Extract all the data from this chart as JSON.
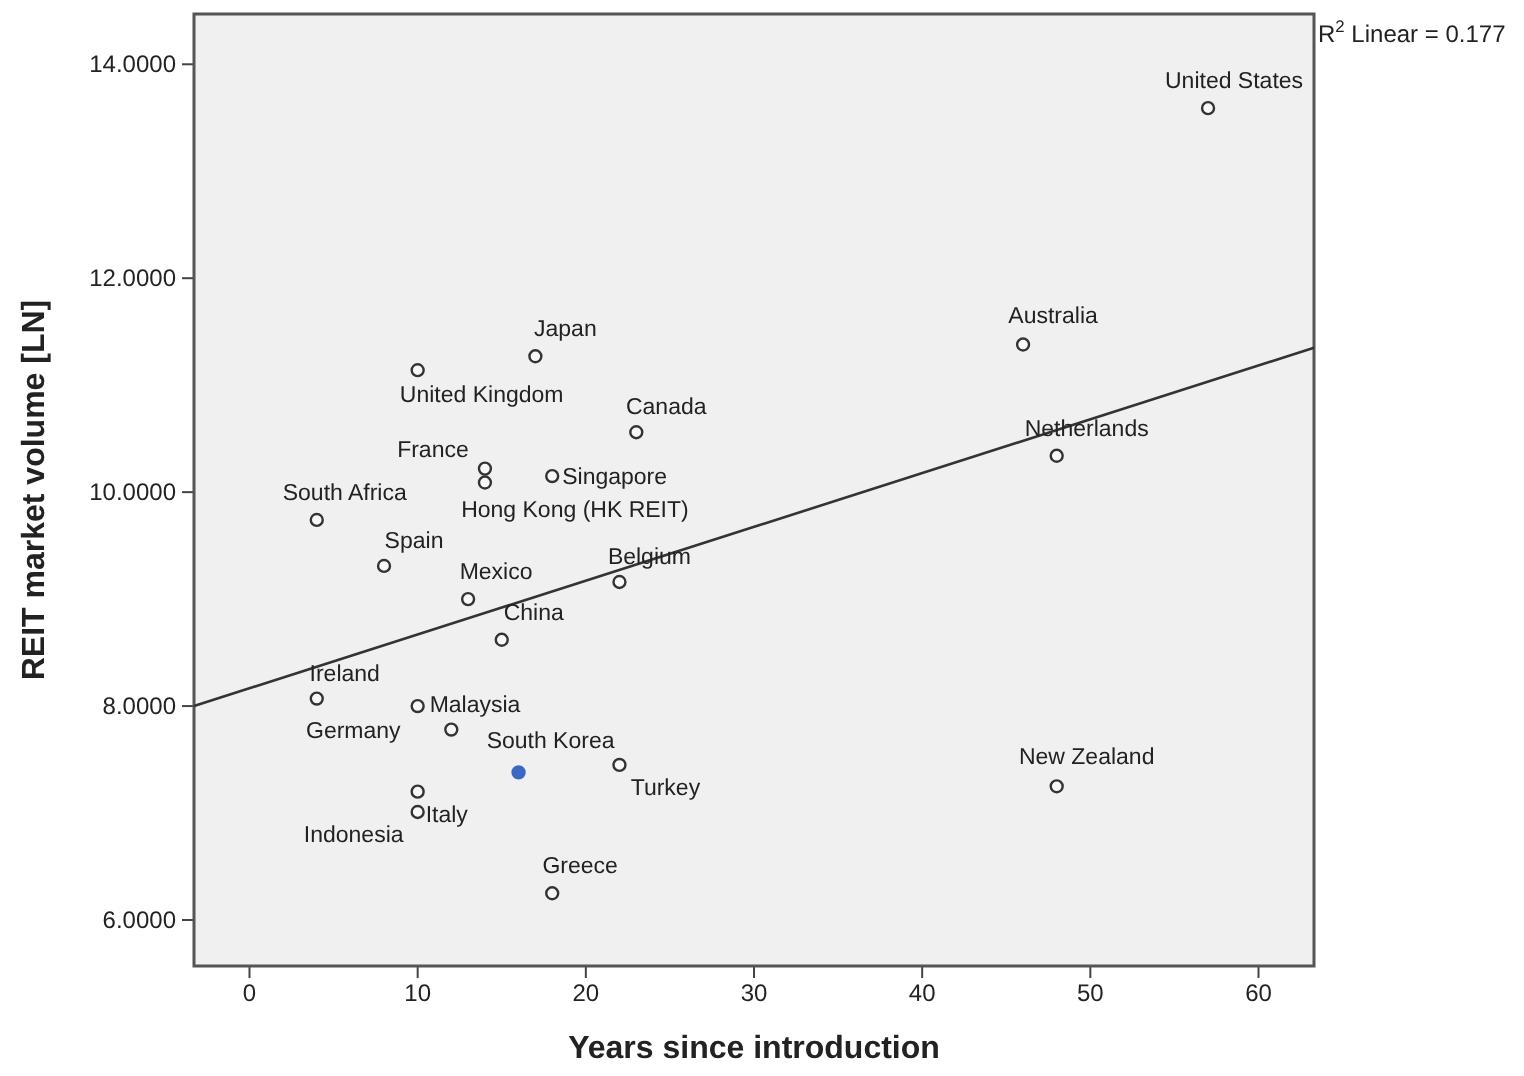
{
  "chart_data": {
    "type": "scatter",
    "xlabel": "Years since introduction",
    "ylabel": "REIT market volume [LN]",
    "xlim": [
      -3.3,
      63.3
    ],
    "ylim": [
      5.57,
      14.47
    ],
    "xticks": [
      0,
      10,
      20,
      30,
      40,
      50,
      60
    ],
    "yticks": [
      {
        "value": 6,
        "label": "6.0000"
      },
      {
        "value": 8,
        "label": "8.0000"
      },
      {
        "value": 10,
        "label": "10.0000"
      },
      {
        "value": 12,
        "label": "12.0000"
      },
      {
        "value": 14,
        "label": "14.0000"
      }
    ],
    "grid": false,
    "series": [
      {
        "marker": "circle",
        "color": "#333333",
        "x": [
          57,
          46,
          48,
          48,
          17,
          10,
          23,
          14,
          14,
          18,
          4,
          8,
          13,
          22,
          15,
          4,
          10,
          12,
          16,
          22,
          10,
          10,
          18
        ],
        "values": [
          13.59,
          11.38,
          10.34,
          7.25,
          11.27,
          11.14,
          10.56,
          10.22,
          10.09,
          10.15,
          9.74,
          9.31,
          9.0,
          9.16,
          8.62,
          8.07,
          8.0,
          7.78,
          7.38,
          7.45,
          7.2,
          7.01,
          6.25
        ],
        "colors": [
          "#333333",
          "#333333",
          "#333333",
          "#333333",
          "#333333",
          "#333333",
          "#333333",
          "#333333",
          "#333333",
          "#333333",
          "#333333",
          "#333333",
          "#333333",
          "#333333",
          "#333333",
          "#333333",
          "#333333",
          "#333333",
          "#3a68c4",
          "#333333",
          "#333333",
          "#333333",
          "#333333"
        ]
      },
      {
        "type": "line",
        "marker": "none",
        "color": "#333333",
        "line_style": "solid",
        "x": [
          -3.3,
          63.3
        ],
        "values": [
          8.0,
          11.35
        ]
      }
    ],
    "annotations": [
      {
        "text": "United States",
        "x": 57,
        "y": 13.59
      },
      {
        "text": "Australia",
        "x": 46,
        "y": 11.38
      },
      {
        "text": "Netherlands",
        "x": 48,
        "y": 10.34
      },
      {
        "text": "New Zealand",
        "x": 48,
        "y": 7.25
      },
      {
        "text": "Japan",
        "x": 17,
        "y": 11.27
      },
      {
        "text": "United Kingdom",
        "x": 10,
        "y": 11.14
      },
      {
        "text": "Canada",
        "x": 23,
        "y": 10.56
      },
      {
        "text": "France",
        "x": 14,
        "y": 10.22
      },
      {
        "text": "Hong Kong (HK REIT)",
        "x": 14,
        "y": 10.09
      },
      {
        "text": "Singapore",
        "x": 18,
        "y": 10.15
      },
      {
        "text": "South Africa",
        "x": 4,
        "y": 9.74
      },
      {
        "text": "Spain",
        "x": 8,
        "y": 9.31
      },
      {
        "text": "Mexico",
        "x": 13,
        "y": 9.0
      },
      {
        "text": "Belgium",
        "x": 22,
        "y": 9.16
      },
      {
        "text": "China",
        "x": 15,
        "y": 8.62
      },
      {
        "text": "Ireland",
        "x": 4,
        "y": 8.07
      },
      {
        "text": "Malaysia",
        "x": 10,
        "y": 8.0
      },
      {
        "text": "Germany",
        "x": 12,
        "y": 7.78
      },
      {
        "text": "South Korea",
        "x": 16,
        "y": 7.38
      },
      {
        "text": "Turkey",
        "x": 22,
        "y": 7.45
      },
      {
        "text": "Indonesia",
        "x": 10,
        "y": 7.2
      },
      {
        "text": "Italy",
        "x": 10,
        "y": 7.01
      },
      {
        "text": "Greece",
        "x": 18,
        "y": 6.25
      },
      "R$^{2}$ Linear = 0.177"
    ]
  }
}
